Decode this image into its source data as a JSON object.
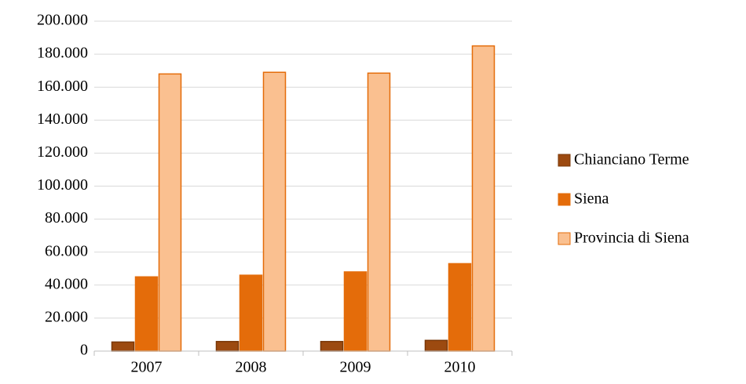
{
  "chart_data": {
    "type": "bar",
    "categories": [
      "2007",
      "2008",
      "2009",
      "2010"
    ],
    "series": [
      {
        "name": "Chianciano Terme",
        "color": "#9c4a10",
        "values": [
          5500,
          5800,
          5800,
          6500
        ]
      },
      {
        "name": "Siena",
        "color": "#e46c0a",
        "values": [
          45000,
          46000,
          48000,
          53000
        ]
      },
      {
        "name": "Provincia di Siena",
        "color": "#fac090",
        "values": [
          168000,
          169000,
          168500,
          185000
        ]
      }
    ],
    "ylim": [
      0,
      200000
    ],
    "yticks": [
      0,
      {
        "value": 20000,
        "label": "20.000"
      },
      {
        "value": 40000,
        "label": "40.000"
      },
      {
        "value": 60000,
        "label": "60.000"
      },
      {
        "value": 80000,
        "label": "80.000"
      },
      {
        "value": 100000,
        "label": "100.000"
      },
      {
        "value": 120000,
        "label": "120.000"
      },
      {
        "value": 140000,
        "label": "140.000"
      },
      {
        "value": 160000,
        "label": "160.000"
      },
      {
        "value": 180000,
        "label": "180.000"
      },
      {
        "value": 200000,
        "label": "200.000"
      }
    ],
    "grid": true,
    "legend": "right"
  }
}
